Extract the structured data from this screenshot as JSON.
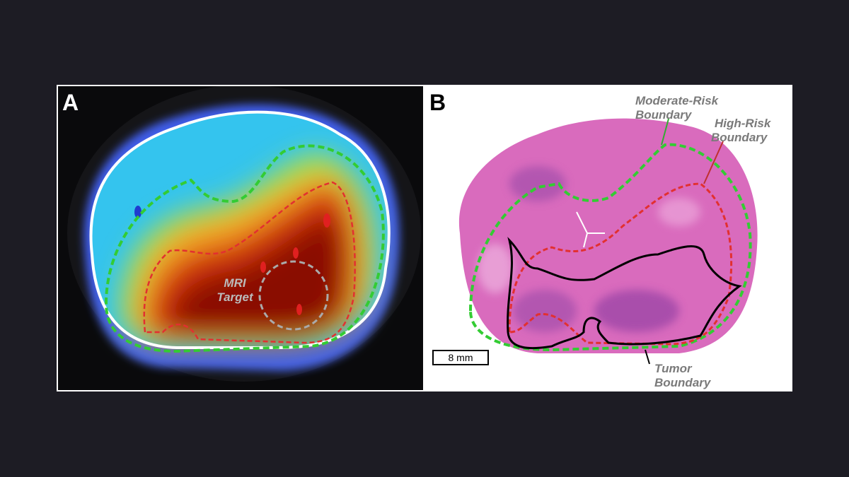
{
  "panels": [
    {
      "label": "A",
      "annotations": [
        {
          "lines": [
            "MRI",
            "Target"
          ]
        }
      ]
    },
    {
      "label": "B",
      "annotations": [
        {
          "lines": [
            "Moderate-Risk",
            "Boundary"
          ]
        },
        {
          "lines": [
            "High-Risk",
            "Boundary"
          ]
        },
        {
          "lines": [
            "Tumor",
            "Boundary"
          ]
        }
      ],
      "scale_bar": "8 mm"
    }
  ]
}
